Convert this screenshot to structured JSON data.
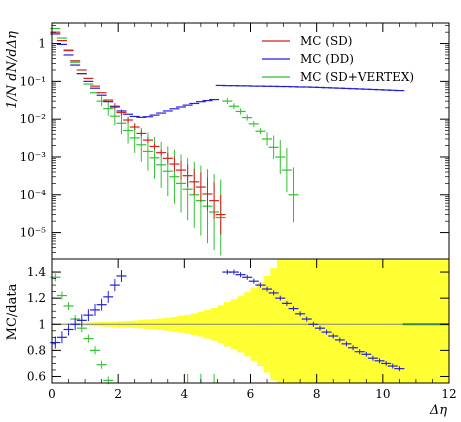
{
  "chart_data": [
    {
      "type": "scatter",
      "title": "",
      "ylabel": "1/N dN/dΔη",
      "yscale": "log",
      "ylim": [
        2e-06,
        3.5
      ],
      "xlim": [
        0,
        12
      ],
      "y_ticks": [
        {
          "value": 1,
          "label": "1"
        },
        {
          "value": 0.1,
          "label": "10⁻¹"
        },
        {
          "value": 0.01,
          "label": "10⁻²"
        },
        {
          "value": 0.001,
          "label": "10⁻³"
        },
        {
          "value": 0.0001,
          "label": "10⁻⁴"
        },
        {
          "value": 1e-05,
          "label": "10⁻⁵"
        }
      ],
      "legend_position": "top-right",
      "grid": false,
      "series": [
        {
          "name": "MC (SD)",
          "color": "#d42020",
          "x": [
            0.1,
            0.3,
            0.5,
            0.7,
            0.9,
            1.1,
            1.3,
            1.5,
            1.7,
            1.9,
            2.1,
            2.3,
            2.5,
            2.7,
            2.9,
            3.1,
            3.3,
            3.5,
            3.7,
            3.9,
            4.1,
            4.3,
            4.5,
            4.7,
            4.9,
            5.1
          ],
          "y": [
            2.0,
            1.2,
            0.65,
            0.35,
            0.2,
            0.12,
            0.075,
            0.05,
            0.032,
            0.022,
            0.015,
            0.0095,
            0.0062,
            0.0042,
            0.0028,
            0.0019,
            0.0013,
            0.00092,
            0.00065,
            0.00045,
            0.00032,
            0.00022,
            0.00016,
            0.000105,
            7e-05,
            3e-05
          ]
        },
        {
          "name": "MC (DD)",
          "color": "#2020d8",
          "x": [
            0.1,
            0.3,
            0.5,
            0.7,
            0.9,
            1.1,
            1.3,
            1.5,
            1.7,
            1.9,
            2.1,
            2.3,
            2.5,
            2.7,
            2.9,
            3.1,
            3.3,
            3.5,
            3.7,
            3.9,
            4.1,
            4.3,
            4.5,
            4.7,
            4.9,
            5.1,
            5.3,
            5.5,
            5.7,
            5.9,
            6.1,
            6.3,
            6.5,
            6.7,
            6.9,
            7.1,
            7.3,
            7.5,
            7.7,
            7.9,
            8.1,
            8.3,
            8.5,
            8.7,
            8.9,
            9.1,
            9.3,
            9.5,
            9.7,
            9.9,
            10.1,
            10.3,
            10.5
          ],
          "y": [
            1.8,
            0.95,
            0.5,
            0.27,
            0.16,
            0.1,
            0.066,
            0.043,
            0.029,
            0.021,
            0.0165,
            0.0135,
            0.0118,
            0.0112,
            0.0116,
            0.0128,
            0.0145,
            0.0165,
            0.0188,
            0.021,
            0.0235,
            0.026,
            0.029,
            0.031,
            0.033,
            0.078,
            0.077,
            0.077,
            0.076,
            0.076,
            0.075,
            0.075,
            0.074,
            0.074,
            0.073,
            0.073,
            0.072,
            0.071,
            0.071,
            0.07,
            0.069,
            0.068,
            0.067,
            0.066,
            0.065,
            0.064,
            0.063,
            0.062,
            0.061,
            0.06,
            0.059,
            0.058,
            0.057
          ]
        },
        {
          "name": "MC (SD+VERTEX)",
          "color": "#30c030",
          "x": [
            0.1,
            0.3,
            0.5,
            0.7,
            0.9,
            1.1,
            1.3,
            1.5,
            1.7,
            1.9,
            2.1,
            2.3,
            2.5,
            2.7,
            2.9,
            3.1,
            3.3,
            3.5,
            3.7,
            3.9,
            4.1,
            4.3,
            4.5,
            4.7,
            4.9,
            5.1,
            5.3,
            5.5,
            5.7,
            5.9,
            6.1,
            6.3,
            6.5,
            6.7,
            6.9,
            7.1,
            7.3
          ],
          "y": [
            2.5,
            1.4,
            0.68,
            0.32,
            0.16,
            0.085,
            0.05,
            0.03,
            0.019,
            0.012,
            0.0078,
            0.005,
            0.0032,
            0.0021,
            0.0014,
            0.00095,
            0.00062,
            0.00042,
            0.0003,
            0.0002,
            0.00014,
            0.0001,
            7e-05,
            5e-05,
            3.5e-05,
            2.5e-05,
            0.03,
            0.022,
            0.016,
            0.011,
            0.0075,
            0.0048,
            0.003,
            0.0018,
            0.001,
            0.00045,
            0.0001
          ]
        }
      ]
    },
    {
      "type": "scatter",
      "title": "",
      "xlabel": "Δη",
      "ylabel": "MC/data",
      "xlim": [
        0,
        12
      ],
      "ylim": [
        0.55,
        1.5
      ],
      "x_ticks": [
        {
          "value": 0,
          "label": "0"
        },
        {
          "value": 2,
          "label": "2"
        },
        {
          "value": 4,
          "label": "4"
        },
        {
          "value": 6,
          "label": "6"
        },
        {
          "value": 8,
          "label": "8"
        },
        {
          "value": 10,
          "label": "10"
        },
        {
          "value": 12,
          "label": "12"
        }
      ],
      "y_ticks": [
        {
          "value": 0.6,
          "label": "0.6"
        },
        {
          "value": 0.8,
          "label": "0.8"
        },
        {
          "value": 1,
          "label": "1"
        },
        {
          "value": 1.2,
          "label": "1.2"
        },
        {
          "value": 1.4,
          "label": "1.4"
        }
      ],
      "grid": false,
      "reference_line": {
        "y": 1,
        "color": "#808080"
      },
      "uncertainty_band": {
        "color": "#ffff33",
        "x_start": 0.2,
        "bin_width": 0.2,
        "half_width": [
          0.005,
          0.007,
          0.009,
          0.011,
          0.013,
          0.015,
          0.017,
          0.019,
          0.021,
          0.023,
          0.025,
          0.028,
          0.032,
          0.036,
          0.04,
          0.045,
          0.05,
          0.056,
          0.064,
          0.072,
          0.082,
          0.094,
          0.11,
          0.125,
          0.145,
          0.17,
          0.19,
          0.215,
          0.245,
          0.28,
          0.32,
          0.37,
          0.43,
          0.5,
          0.58,
          0.68,
          0.78,
          0.88,
          0.95,
          0.95,
          0.95,
          0.95,
          0.95,
          0.95,
          0.95,
          0.95,
          0.95,
          0.95,
          0.95,
          0.95,
          0.95,
          0.95,
          0.95,
          0.95,
          0.95,
          0.95,
          0.95,
          0.95,
          0.95,
          0.95,
          0.95,
          0.95,
          0.95,
          0.95,
          0.95,
          0.95,
          0.95,
          0.95,
          0.95,
          0.95,
          0.95,
          0.95,
          0.95,
          0.95,
          0.95,
          0.95,
          0.95,
          0.95,
          0.95,
          0.95,
          0.95,
          0.95,
          0.95,
          0.95,
          0.95,
          0.95,
          0.95,
          0.95
        ]
      },
      "series": [
        {
          "name": "MC (SD)",
          "color": "#d42020",
          "x": [],
          "y": []
        },
        {
          "name": "MC (DD)",
          "color": "#2020d8",
          "x": [
            0.1,
            0.3,
            0.5,
            0.7,
            0.9,
            1.1,
            1.3,
            1.5,
            1.7,
            1.9,
            2.1,
            5.3,
            5.5,
            5.7,
            5.9,
            6.1,
            6.3,
            6.5,
            6.7,
            6.9,
            7.1,
            7.3,
            7.5,
            7.7,
            7.9,
            8.1,
            8.3,
            8.5,
            8.7,
            8.9,
            9.1,
            9.3,
            9.5,
            9.7,
            9.9,
            10.1,
            10.3,
            10.5
          ],
          "y": [
            0.86,
            0.9,
            0.96,
            1.0,
            1.03,
            1.07,
            1.11,
            1.15,
            1.21,
            1.3,
            1.37,
            1.4,
            1.4,
            1.38,
            1.36,
            1.33,
            1.3,
            1.27,
            1.24,
            1.2,
            1.16,
            1.12,
            1.08,
            1.04,
            1.0,
            0.97,
            0.94,
            0.91,
            0.88,
            0.85,
            0.82,
            0.79,
            0.77,
            0.74,
            0.72,
            0.7,
            0.68,
            0.66
          ]
        },
        {
          "name": "MC (SD+VERTEX)",
          "color": "#30c030",
          "x": [
            0.1,
            0.3,
            0.5,
            0.7,
            0.9,
            1.1,
            1.3,
            1.5,
            1.7
          ],
          "y": [
            1.36,
            1.22,
            1.14,
            1.04,
            0.97,
            0.89,
            0.8,
            0.69,
            0.57
          ]
        }
      ]
    }
  ]
}
